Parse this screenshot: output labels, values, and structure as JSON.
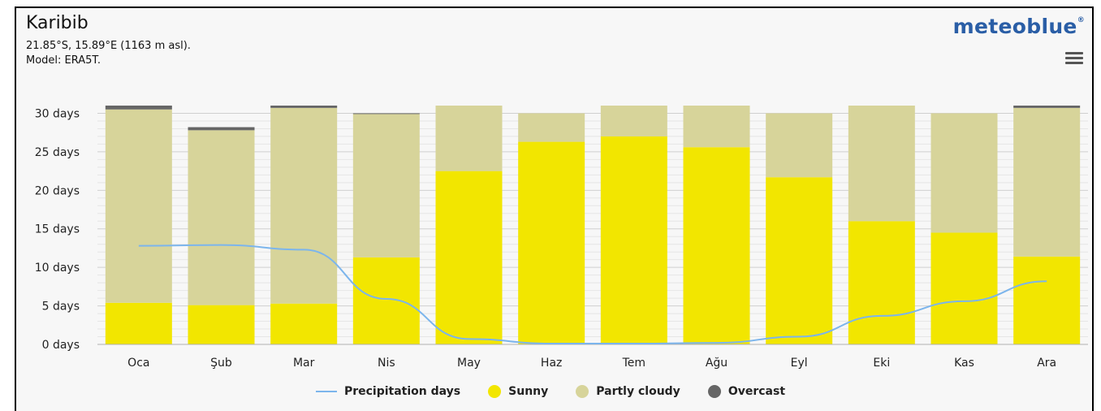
{
  "header": {
    "title": "Karibib",
    "coords": "21.85°S, 15.89°E (1163 m asl).",
    "model": "Model: ERA5T.",
    "brand": "meteoblue",
    "brand_mark": "®"
  },
  "menu": {
    "icon": "hamburger-icon"
  },
  "colors": {
    "sunny": "#f2e600",
    "partly": "#d7d49a",
    "overcast": "#666666",
    "precip": "#7cb5ec"
  },
  "chart_data": {
    "type": "bar",
    "stacked": true,
    "categories": [
      "Oca",
      "Şub",
      "Mar",
      "Nis",
      "May",
      "Haz",
      "Tem",
      "Ağu",
      "Eyl",
      "Eki",
      "Kas",
      "Ara"
    ],
    "series": [
      {
        "name": "Sunny",
        "values": [
          5.4,
          5.1,
          5.3,
          11.3,
          22.5,
          26.3,
          27.0,
          25.6,
          21.7,
          16.0,
          14.5,
          11.4
        ]
      },
      {
        "name": "Partly cloudy",
        "values": [
          25.1,
          22.7,
          25.4,
          18.6,
          8.5,
          3.7,
          4.0,
          5.4,
          8.3,
          15.0,
          15.5,
          19.3
        ]
      },
      {
        "name": "Overcast",
        "values": [
          0.5,
          0.4,
          0.3,
          0.1,
          0.0,
          0.0,
          0.0,
          0.0,
          0.0,
          0.0,
          0.0,
          0.3
        ]
      },
      {
        "name": "Precipitation days",
        "type": "line",
        "values": [
          12.8,
          12.9,
          12.3,
          5.9,
          0.7,
          0.1,
          0.1,
          0.2,
          1.0,
          3.7,
          5.6,
          8.2
        ]
      }
    ],
    "y_ticks": [
      "0 days",
      "5 days",
      "10 days",
      "15 days",
      "20 days",
      "25 days",
      "30 days"
    ],
    "ylim": [
      0,
      31
    ],
    "grid": true,
    "legend_position": "bottom-center"
  },
  "legend": [
    {
      "label": "Precipitation days"
    },
    {
      "label": "Sunny"
    },
    {
      "label": "Partly cloudy"
    },
    {
      "label": "Overcast"
    }
  ]
}
